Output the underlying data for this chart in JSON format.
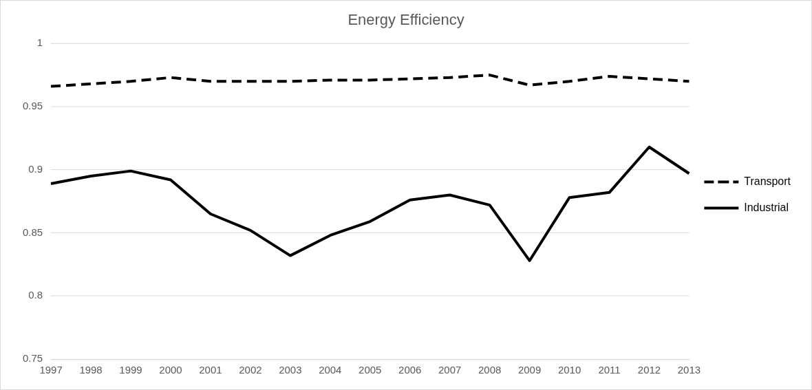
{
  "chart_data": {
    "type": "line",
    "title": "Energy Efficiency",
    "categories": [
      "1997",
      "1998",
      "1999",
      "2000",
      "2001",
      "2002",
      "2003",
      "2004",
      "2005",
      "2006",
      "2007",
      "2008",
      "2009",
      "2010",
      "2011",
      "2012",
      "2013"
    ],
    "series": [
      {
        "name": "Transport",
        "color": "#000000",
        "line_style": "dashed",
        "values": [
          0.966,
          0.968,
          0.97,
          0.973,
          0.97,
          0.97,
          0.97,
          0.971,
          0.971,
          0.972,
          0.973,
          0.975,
          0.967,
          0.97,
          0.974,
          0.972,
          0.97
        ]
      },
      {
        "name": "Industrial",
        "color": "#000000",
        "line_style": "solid",
        "values": [
          0.889,
          0.895,
          0.899,
          0.892,
          0.865,
          0.852,
          0.832,
          0.848,
          0.859,
          0.876,
          0.88,
          0.872,
          0.828,
          0.878,
          0.882,
          0.918,
          0.897
        ]
      }
    ],
    "ylim": [
      0.75,
      1
    ],
    "yticks": [
      0.75,
      0.8,
      0.85,
      0.9,
      0.95,
      1
    ],
    "grid": "y",
    "legend": "right",
    "marker": "none"
  }
}
